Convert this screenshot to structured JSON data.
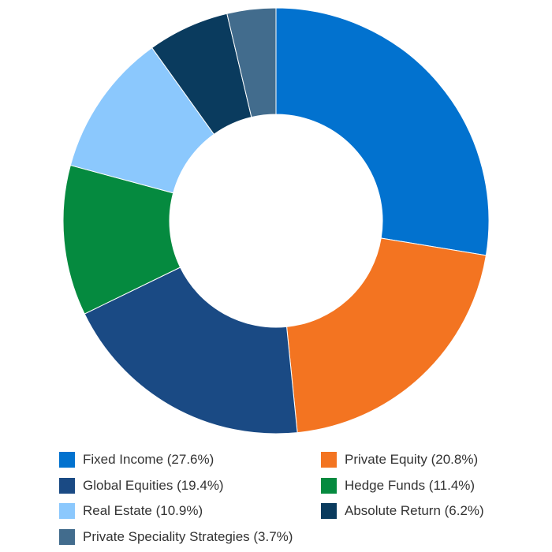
{
  "chart_data": {
    "type": "pie",
    "donut": true,
    "title": "",
    "legend_position": "bottom",
    "slices": [
      {
        "label": "Fixed Income (27.6%)",
        "value": 27.6,
        "color": "#0272CF"
      },
      {
        "label": "Private Equity (20.8%)",
        "value": 20.8,
        "color": "#F37421"
      },
      {
        "label": "Global Equities (19.4%)",
        "value": 19.4,
        "color": "#1A4A84"
      },
      {
        "label": "Hedge Funds (11.4%)",
        "value": 11.4,
        "color": "#058A3F"
      },
      {
        "label": "Real Estate (10.9%)",
        "value": 10.9,
        "color": "#8BC8FD"
      },
      {
        "label": "Absolute Return (6.2%)",
        "value": 6.2,
        "color": "#0A3B5E"
      },
      {
        "label": "Private Speciality Strategies (3.7%)",
        "value": 3.7,
        "color": "#426C8D"
      }
    ],
    "legend_order": [
      0,
      1,
      2,
      3,
      4,
      5,
      6
    ]
  }
}
